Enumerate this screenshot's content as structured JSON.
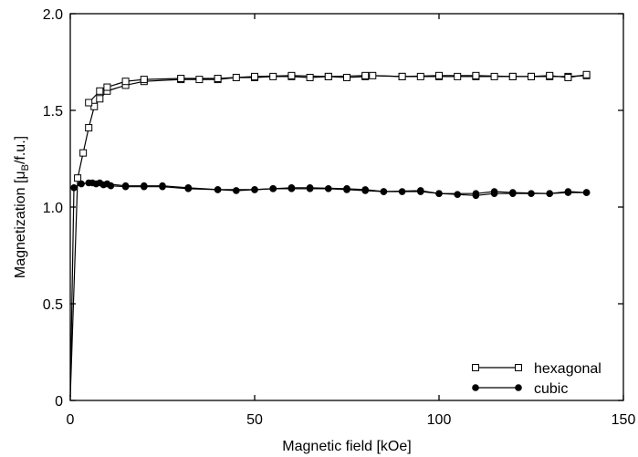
{
  "chart_data": {
    "type": "line",
    "xlabel": "Magnetic field [kOe]",
    "ylabel": {
      "prefix": "Magnetization [",
      "mu": "μ",
      "sub": "B",
      "suffix": "/f.u.]"
    },
    "xlim": [
      0,
      150
    ],
    "ylim": [
      0,
      2.0
    ],
    "xticks": [
      "0",
      "50",
      "100",
      "150"
    ],
    "yticks": [
      "0",
      "0.5",
      "1.0",
      "1.5",
      "2.0"
    ],
    "legend_position": "bottom-right",
    "grid": false,
    "series": [
      {
        "name": "hexagonal",
        "marker": "open-square",
        "branches": [
          {
            "x": [
              0,
              2,
              3.5,
              5,
              6.5,
              8,
              10,
              15,
              20,
              30,
              35,
              40,
              45,
              50,
              55,
              60,
              65,
              70,
              75,
              80,
              82,
              90,
              95,
              100,
              105,
              110,
              115,
              120,
              125,
              130,
              135,
              140
            ],
            "y": [
              0.02,
              1.15,
              1.28,
              1.41,
              1.52,
              1.56,
              1.6,
              1.63,
              1.65,
              1.66,
              1.66,
              1.66,
              1.67,
              1.67,
              1.675,
              1.675,
              1.67,
              1.675,
              1.67,
              1.675,
              1.68,
              1.675,
              1.675,
              1.675,
              1.675,
              1.675,
              1.675,
              1.675,
              1.675,
              1.675,
              1.675,
              1.68
            ]
          },
          {
            "x": [
              140,
              135,
              130,
              125,
              120,
              110,
              100,
              90,
              80,
              70,
              60,
              50,
              40,
              30,
              20,
              15,
              10,
              8,
              5
            ],
            "y": [
              1.685,
              1.67,
              1.68,
              1.675,
              1.675,
              1.68,
              1.68,
              1.675,
              1.68,
              1.675,
              1.68,
              1.675,
              1.665,
              1.665,
              1.66,
              1.65,
              1.62,
              1.6,
              1.54
            ]
          }
        ]
      },
      {
        "name": "cubic",
        "marker": "filled-circle",
        "branches": [
          {
            "x": [
              0,
              1,
              3,
              5,
              7,
              9,
              11,
              15,
              20,
              25,
              32,
              40,
              45,
              50,
              55,
              60,
              65,
              70,
              75,
              80,
              85,
              90,
              95,
              100,
              105,
              110,
              115,
              120,
              125,
              130,
              135,
              140
            ],
            "y": [
              0.02,
              1.1,
              1.12,
              1.125,
              1.12,
              1.115,
              1.11,
              1.105,
              1.105,
              1.105,
              1.095,
              1.09,
              1.085,
              1.09,
              1.095,
              1.095,
              1.095,
              1.095,
              1.09,
              1.085,
              1.08,
              1.08,
              1.08,
              1.07,
              1.065,
              1.06,
              1.07,
              1.07,
              1.07,
              1.07,
              1.075,
              1.075
            ]
          },
          {
            "x": [
              140,
              135,
              130,
              120,
              115,
              110,
              100,
              95,
              85,
              80,
              75,
              65,
              60,
              55,
              50,
              40,
              32,
              25,
              20,
              15,
              10,
              8,
              6
            ],
            "y": [
              1.075,
              1.08,
              1.07,
              1.075,
              1.08,
              1.07,
              1.07,
              1.085,
              1.08,
              1.09,
              1.095,
              1.1,
              1.1,
              1.095,
              1.09,
              1.09,
              1.1,
              1.11,
              1.11,
              1.11,
              1.12,
              1.125,
              1.125
            ]
          }
        ]
      }
    ]
  }
}
